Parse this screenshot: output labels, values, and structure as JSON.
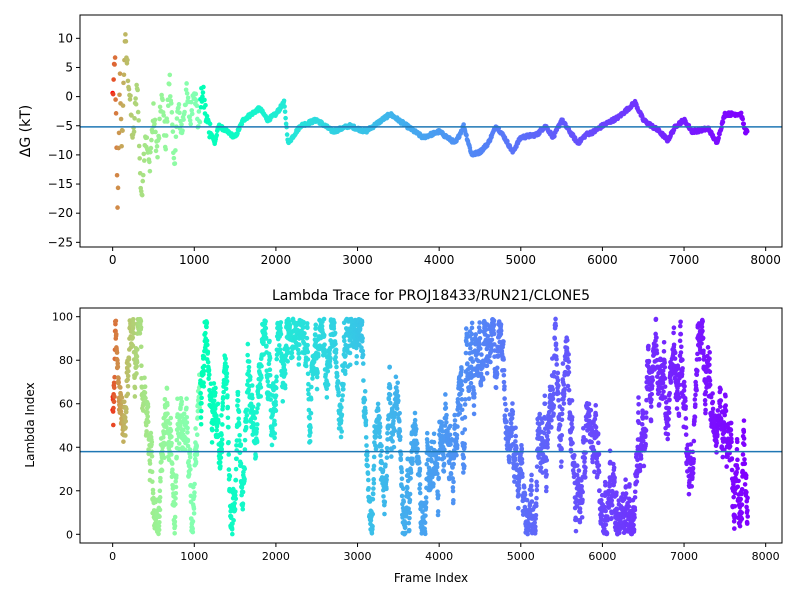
{
  "chart_data": [
    {
      "type": "scatter",
      "title": "",
      "xlabel": "",
      "ylabel": "ΔG (kT)",
      "xlim": [
        -400,
        8200
      ],
      "ylim": [
        -25.8,
        14.0
      ],
      "xticks": [
        "0",
        "1000",
        "2000",
        "3000",
        "4000",
        "5000",
        "6000",
        "7000",
        "8000"
      ],
      "xtick_values": [
        0,
        1000,
        2000,
        3000,
        4000,
        5000,
        6000,
        7000,
        8000
      ],
      "yticks": [
        "−25",
        "−20",
        "−15",
        "−10",
        "−5",
        "0",
        "5",
        "10"
      ],
      "ytick_values": [
        -25,
        -20,
        -15,
        -10,
        -5,
        0,
        5,
        10
      ],
      "hline": -5.2,
      "hline_color": "#1f77b4",
      "colormap": "rainbow (red at frame 0 → violet at late frames)",
      "x_max_frame": 7780,
      "trace_points": [
        [
          0,
          0.0
        ],
        [
          30,
          6.0
        ],
        [
          60,
          -20.0
        ],
        [
          90,
          5.0
        ],
        [
          110,
          -10.0
        ],
        [
          150,
          10.0
        ],
        [
          200,
          2.0
        ],
        [
          250,
          -8.0
        ],
        [
          300,
          3.0
        ],
        [
          350,
          -18.0
        ],
        [
          400,
          -6.0
        ],
        [
          450,
          -12.0
        ],
        [
          500,
          -3.0
        ],
        [
          550,
          -10.0
        ],
        [
          600,
          0.0
        ],
        [
          650,
          -8.0
        ],
        [
          700,
          4.0
        ],
        [
          750,
          -12.0
        ],
        [
          800,
          -2.0
        ],
        [
          850,
          -6.0
        ],
        [
          900,
          1.0
        ],
        [
          950,
          -4.0
        ],
        [
          1000,
          2.0
        ],
        [
          1050,
          -5.0
        ],
        [
          1100,
          1.0
        ],
        [
          1150,
          -4.0
        ],
        [
          1200,
          -6.0
        ],
        [
          1250,
          -8.0
        ],
        [
          1300,
          -5.0
        ],
        [
          1400,
          -6.0
        ],
        [
          1500,
          -7.0
        ],
        [
          1600,
          -4.0
        ],
        [
          1700,
          -3.0
        ],
        [
          1800,
          -2.0
        ],
        [
          1900,
          -4.0
        ],
        [
          2000,
          -3.0
        ],
        [
          2100,
          -1.0
        ],
        [
          2150,
          -8.0
        ],
        [
          2300,
          -5.0
        ],
        [
          2500,
          -4.0
        ],
        [
          2700,
          -6.0
        ],
        [
          2900,
          -5.0
        ],
        [
          3100,
          -6.0
        ],
        [
          3300,
          -4.0
        ],
        [
          3400,
          -3.0
        ],
        [
          3600,
          -5.0
        ],
        [
          3800,
          -7.0
        ],
        [
          4000,
          -6.0
        ],
        [
          4200,
          -8.0
        ],
        [
          4300,
          -5.0
        ],
        [
          4400,
          -10.0
        ],
        [
          4500,
          -9.5
        ],
        [
          4600,
          -8.0
        ],
        [
          4700,
          -5.0
        ],
        [
          4800,
          -7.0
        ],
        [
          4900,
          -9.5
        ],
        [
          5000,
          -7.0
        ],
        [
          5200,
          -6.5
        ],
        [
          5300,
          -5.0
        ],
        [
          5400,
          -7.0
        ],
        [
          5500,
          -4.0
        ],
        [
          5600,
          -6.0
        ],
        [
          5700,
          -8.0
        ],
        [
          5800,
          -6.5
        ],
        [
          5900,
          -6.0
        ],
        [
          6000,
          -5.0
        ],
        [
          6200,
          -3.5
        ],
        [
          6400,
          -1.0
        ],
        [
          6500,
          -4.0
        ],
        [
          6600,
          -5.0
        ],
        [
          6700,
          -6.0
        ],
        [
          6800,
          -7.5
        ],
        [
          6900,
          -5.0
        ],
        [
          7000,
          -4.0
        ],
        [
          7100,
          -6.0
        ],
        [
          7300,
          -5.5
        ],
        [
          7400,
          -8.0
        ],
        [
          7500,
          -3.0
        ],
        [
          7700,
          -3.0
        ],
        [
          7750,
          -6.0
        ],
        [
          7780,
          -6.0
        ]
      ]
    },
    {
      "type": "scatter",
      "title": "Lambda Trace for PROJ18433/RUN21/CLONE5",
      "xlabel": "Frame Index",
      "ylabel": "Lambda Index",
      "xlim": [
        -400,
        8200
      ],
      "ylim": [
        -4.0,
        104.0
      ],
      "xticks": [
        "0",
        "1000",
        "2000",
        "3000",
        "4000",
        "5000",
        "6000",
        "7000",
        "8000"
      ],
      "xtick_values": [
        0,
        1000,
        2000,
        3000,
        4000,
        5000,
        6000,
        7000,
        8000
      ],
      "yticks": [
        "0",
        "20",
        "40",
        "60",
        "80",
        "100"
      ],
      "ytick_values": [
        0,
        20,
        40,
        60,
        80,
        100
      ],
      "hline": 38.0,
      "hline_color": "#1f77b4",
      "colormap": "rainbow (red at frame 0 → violet at late frames)",
      "lambda_range": [
        0,
        99
      ],
      "x_max_frame": 7780,
      "approx_point_count": 7780
    }
  ]
}
